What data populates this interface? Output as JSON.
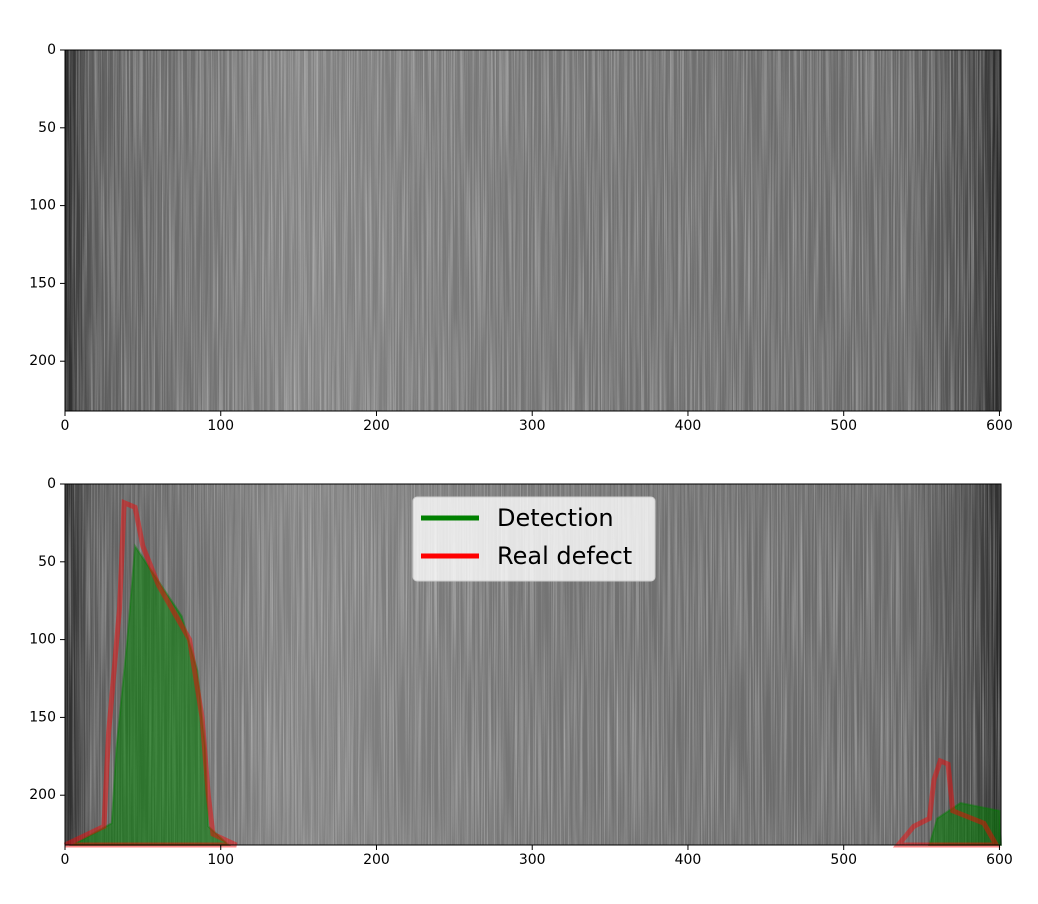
{
  "chart_data": [
    {
      "type": "image",
      "xlim": [
        0,
        601
      ],
      "ylim": [
        232,
        0
      ],
      "xticks": [
        0,
        100,
        200,
        300,
        400,
        500,
        600
      ],
      "yticks": [
        0,
        50,
        100,
        150,
        200
      ]
    },
    {
      "type": "image",
      "xlim": [
        0,
        601
      ],
      "ylim": [
        232,
        0
      ],
      "xticks": [
        0,
        100,
        200,
        300,
        400,
        500,
        600
      ],
      "yticks": [
        0,
        50,
        100,
        150,
        200
      ],
      "legend": "upper center",
      "series": [
        {
          "name": "Detection",
          "color": "#008000",
          "regions": [
            {
              "x": [
                5,
                30,
                33,
                40,
                45,
                55,
                75,
                85,
                90,
                92,
                105
              ],
              "y": [
                232,
                218,
                170,
                100,
                40,
                55,
                85,
                120,
                170,
                220,
                232
              ]
            },
            {
              "x": [
                555,
                560,
                575,
                600,
                601
              ],
              "y": [
                232,
                215,
                205,
                210,
                232
              ]
            }
          ]
        },
        {
          "name": "Real defect",
          "color": "#ff0000",
          "regions": [
            {
              "x": [
                0,
                25,
                28,
                35,
                38,
                45,
                50,
                60,
                80,
                88,
                92,
                95,
                110
              ],
              "y": [
                232,
                220,
                160,
                80,
                12,
                15,
                40,
                65,
                100,
                150,
                200,
                225,
                232
              ]
            },
            {
              "x": [
                535,
                545,
                555,
                558,
                562,
                567,
                570,
                590,
                598
              ],
              "y": [
                232,
                220,
                215,
                190,
                178,
                180,
                210,
                218,
                232
              ]
            }
          ]
        }
      ]
    }
  ]
}
